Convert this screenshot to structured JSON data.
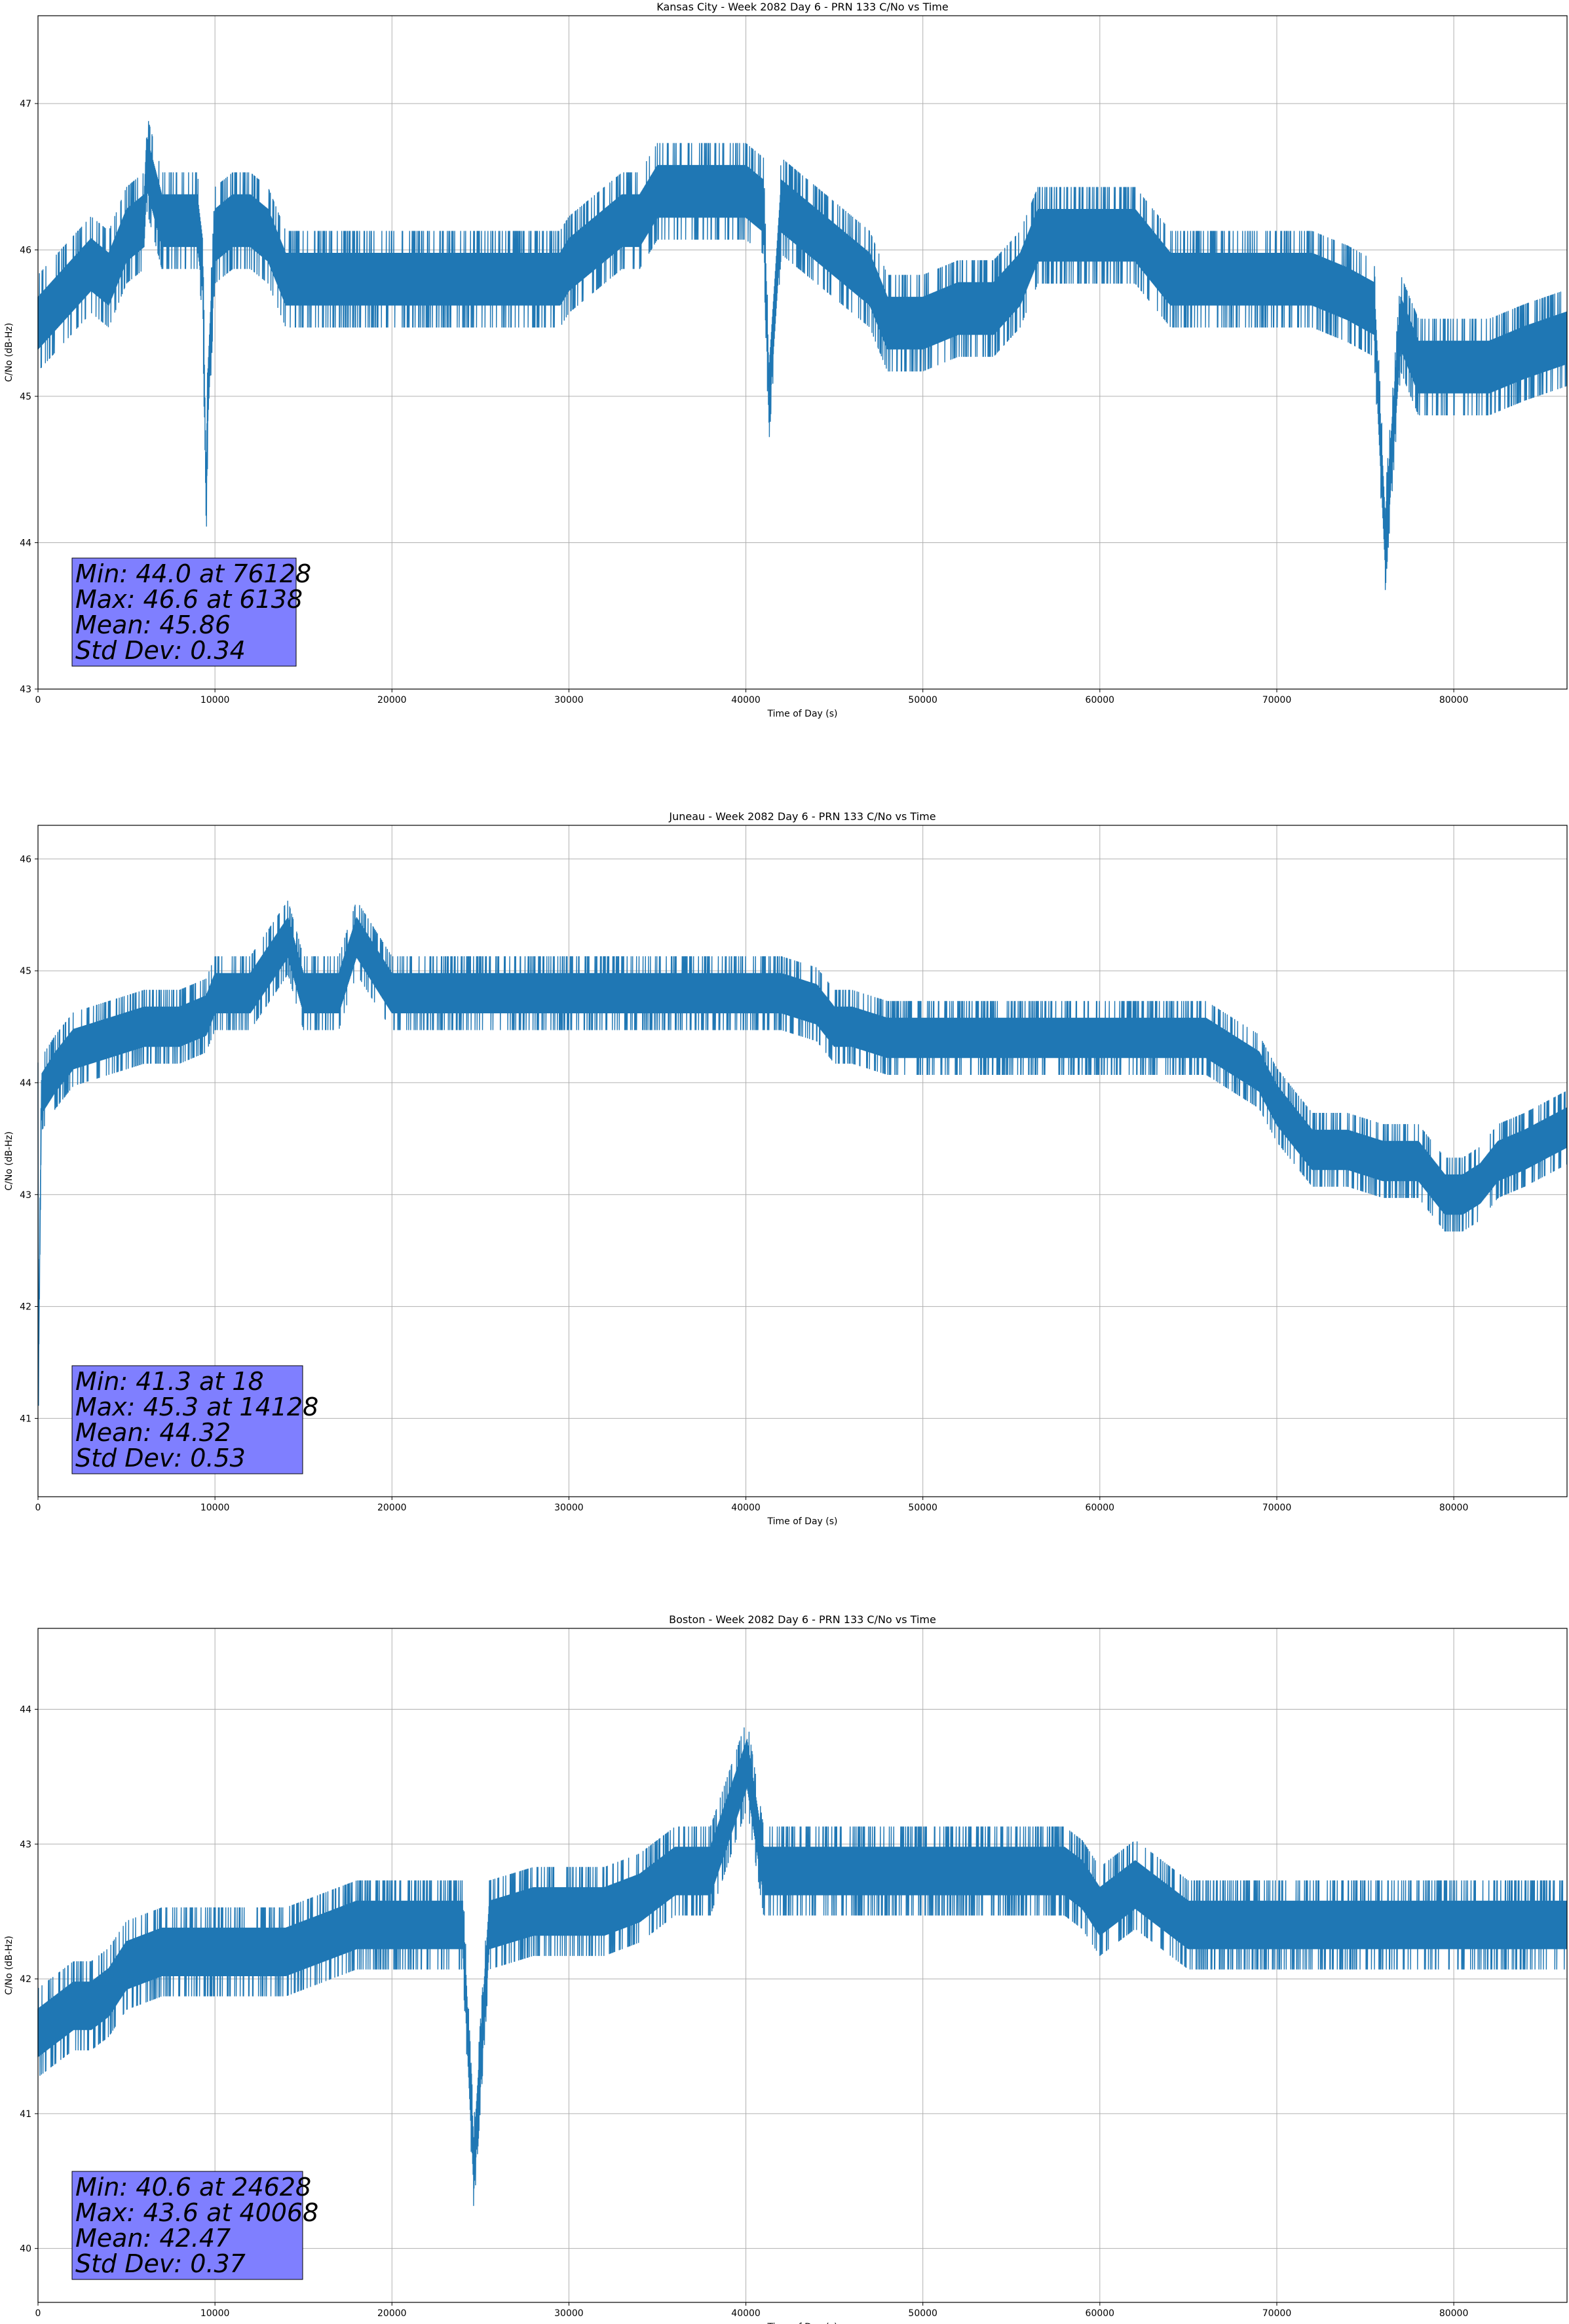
{
  "chart_data": [
    {
      "type": "line",
      "title": "Kansas City - Week 2082 Day 6 - PRN 133 C/No vs Time",
      "xlabel": "Time of Day (s)",
      "ylabel": "C/No (dB-Hz)",
      "xlim": [
        0,
        86400
      ],
      "ylim": [
        43,
        47.6
      ],
      "xticks": [
        "0",
        "10000",
        "20000",
        "30000",
        "40000",
        "50000",
        "60000",
        "70000",
        "80000"
      ],
      "yticks": [
        "43",
        "44",
        "45",
        "46",
        "47"
      ],
      "grid": true,
      "color": "#1f77b4",
      "stats": [
        "Min: 44.0 at 76128",
        "Max: 46.6 at 6138",
        "Mean: 45.86",
        "Std Dev: 0.34"
      ],
      "series": [
        {
          "x": [
            0,
            1500,
            3000,
            4000,
            5000,
            6000,
            6138,
            7000,
            8000,
            9000,
            9300,
            9500,
            9600,
            10000,
            11000,
            12000,
            13000,
            14000,
            16000,
            18000,
            20000,
            22000,
            24000,
            26000,
            28000,
            29500,
            30000,
            32000,
            33000,
            34000,
            35000,
            36000,
            38000,
            40000,
            41000,
            41300,
            42000,
            43000,
            45000,
            46000,
            47000,
            48000,
            50000,
            52000,
            54000,
            55500,
            56500,
            58000,
            60000,
            62000,
            64000,
            65000,
            66000,
            68000,
            70000,
            72000,
            74000,
            75500,
            76128,
            77000,
            78000,
            80000,
            82000,
            84000,
            86400
          ],
          "y": [
            45.5,
            45.7,
            45.9,
            45.8,
            46.1,
            46.2,
            46.6,
            46.2,
            46.2,
            46.2,
            45.9,
            44.3,
            45.0,
            46.1,
            46.2,
            46.2,
            46.1,
            45.8,
            45.8,
            45.8,
            45.8,
            45.8,
            45.8,
            45.8,
            45.8,
            45.8,
            45.9,
            46.1,
            46.2,
            46.2,
            46.4,
            46.4,
            46.4,
            46.4,
            46.3,
            45.0,
            46.3,
            46.2,
            46.0,
            45.9,
            45.8,
            45.5,
            45.5,
            45.6,
            45.6,
            45.8,
            46.1,
            46.1,
            46.1,
            46.1,
            45.8,
            45.8,
            45.8,
            45.8,
            45.8,
            45.8,
            45.7,
            45.6,
            44.0,
            45.5,
            45.2,
            45.2,
            45.2,
            45.3,
            45.4
          ]
        }
      ]
    },
    {
      "type": "line",
      "title": "Juneau - Week 2082 Day 6 - PRN 133 C/No vs Time",
      "xlabel": "Time of Day (s)",
      "ylabel": "C/No (dB-Hz)",
      "xlim": [
        0,
        86400
      ],
      "ylim": [
        40.3,
        46.3
      ],
      "xticks": [
        "0",
        "10000",
        "20000",
        "30000",
        "40000",
        "50000",
        "60000",
        "70000",
        "80000"
      ],
      "yticks": [
        "41",
        "42",
        "43",
        "44",
        "45",
        "46"
      ],
      "grid": true,
      "color": "#1f77b4",
      "stats": [
        "Min: 41.3 at 18",
        "Max: 45.3 at 14128",
        "Mean: 44.32",
        "Std Dev: 0.53"
      ],
      "series": [
        {
          "x": [
            0,
            18,
            200,
            1000,
            2000,
            4000,
            6000,
            8000,
            9500,
            10000,
            12000,
            14128,
            15000,
            17000,
            18000,
            20000,
            22000,
            24000,
            26000,
            28000,
            30000,
            32000,
            34000,
            36000,
            38000,
            40000,
            42000,
            44000,
            45000,
            46000,
            48000,
            50000,
            52000,
            54000,
            56000,
            58000,
            60000,
            62000,
            64000,
            66000,
            68000,
            69000,
            70000,
            71000,
            72000,
            74000,
            76000,
            78000,
            79500,
            80500,
            81500,
            82500,
            84000,
            86400
          ],
          "y": [
            44.0,
            41.3,
            43.9,
            44.1,
            44.3,
            44.4,
            44.5,
            44.5,
            44.6,
            44.8,
            44.8,
            45.3,
            44.8,
            44.8,
            45.3,
            44.8,
            44.8,
            44.8,
            44.8,
            44.8,
            44.8,
            44.8,
            44.8,
            44.8,
            44.8,
            44.8,
            44.8,
            44.7,
            44.5,
            44.5,
            44.4,
            44.4,
            44.4,
            44.4,
            44.4,
            44.4,
            44.4,
            44.4,
            44.4,
            44.4,
            44.2,
            44.1,
            43.8,
            43.6,
            43.4,
            43.4,
            43.3,
            43.3,
            43.0,
            43.0,
            43.1,
            43.3,
            43.4,
            43.6
          ]
        }
      ]
    },
    {
      "type": "line",
      "title": "Boston - Week 2082 Day 6 - PRN 133 C/No vs Time",
      "xlabel": "Time of Day (s)",
      "ylabel": "C/No (dB-Hz)",
      "xlim": [
        0,
        86400
      ],
      "ylim": [
        39.6,
        44.6
      ],
      "xticks": [
        "0",
        "10000",
        "20000",
        "30000",
        "40000",
        "50000",
        "60000",
        "70000",
        "80000"
      ],
      "yticks": [
        "40",
        "41",
        "42",
        "43",
        "44"
      ],
      "grid": true,
      "color": "#1f77b4",
      "stats": [
        "Min: 40.6 at 24628",
        "Max: 43.6 at 40068",
        "Mean: 42.47",
        "Std Dev: 0.37"
      ],
      "series": [
        {
          "x": [
            0,
            1000,
            2000,
            3000,
            4000,
            5000,
            7000,
            9000,
            10000,
            12000,
            14000,
            16000,
            18000,
            20000,
            22000,
            24000,
            24628,
            25500,
            28000,
            30000,
            32000,
            34000,
            36000,
            38000,
            40068,
            41000,
            42000,
            44000,
            46000,
            48000,
            50000,
            52000,
            54000,
            56000,
            58000,
            59000,
            60000,
            62000,
            64000,
            65000,
            66000,
            68000,
            70000,
            72000,
            74000,
            76000,
            78000,
            80000,
            82000,
            84000,
            86400
          ],
          "y": [
            41.6,
            41.7,
            41.8,
            41.8,
            41.9,
            42.1,
            42.2,
            42.2,
            42.2,
            42.2,
            42.2,
            42.3,
            42.4,
            42.4,
            42.4,
            42.4,
            40.6,
            42.4,
            42.5,
            42.5,
            42.5,
            42.6,
            42.8,
            42.8,
            43.6,
            42.8,
            42.8,
            42.8,
            42.8,
            42.8,
            42.8,
            42.8,
            42.8,
            42.8,
            42.8,
            42.7,
            42.5,
            42.7,
            42.5,
            42.4,
            42.4,
            42.4,
            42.4,
            42.4,
            42.4,
            42.4,
            42.4,
            42.4,
            42.4,
            42.4,
            42.4
          ]
        }
      ]
    }
  ]
}
